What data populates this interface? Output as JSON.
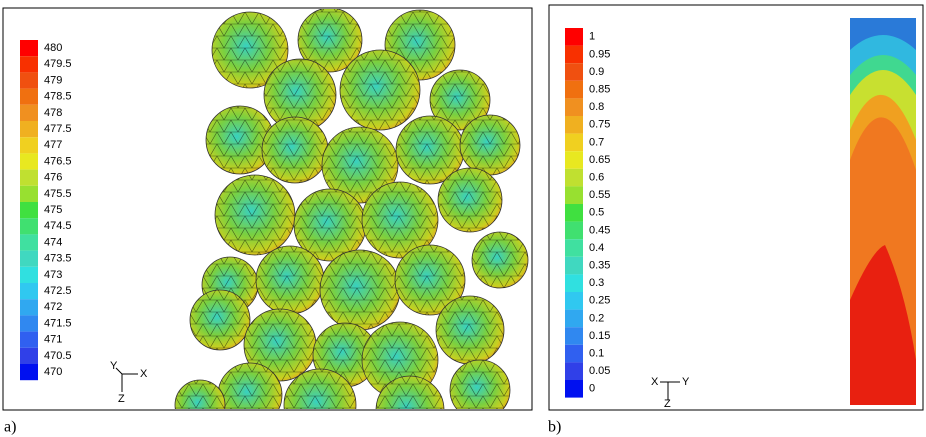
{
  "panel_a": {
    "label": "a)",
    "legend": [
      "480",
      "479.5",
      "479",
      "478.5",
      "478",
      "477.5",
      "477",
      "476.5",
      "476",
      "475.5",
      "475",
      "474.5",
      "474",
      "473.5",
      "473",
      "472.5",
      "472",
      "471.5",
      "471",
      "470.5",
      "470"
    ],
    "axes": {
      "x": "X",
      "y": "Y",
      "z": "Z"
    }
  },
  "panel_b": {
    "label": "b)",
    "legend": [
      "1",
      "0.95",
      "0.9",
      "0.85",
      "0.8",
      "0.75",
      "0.7",
      "0.65",
      "0.6",
      "0.55",
      "0.5",
      "0.45",
      "0.4",
      "0.35",
      "0.3",
      "0.25",
      "0.2",
      "0.15",
      "0.1",
      "0.05",
      "0"
    ],
    "axes": {
      "x": "X",
      "y": "Y",
      "z": "Z"
    }
  }
}
